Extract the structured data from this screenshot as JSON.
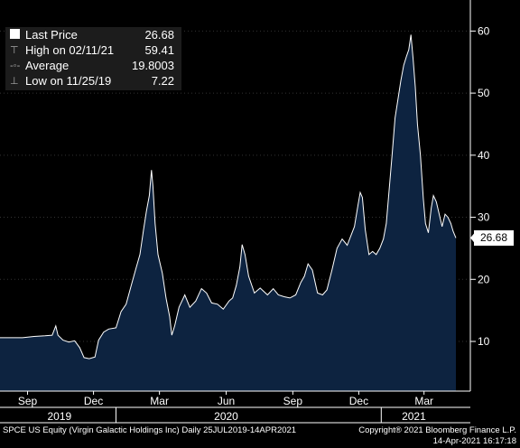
{
  "chart_data": {
    "type": "area",
    "ticker": "SPCE US Equity (Virgin Galactic Holdings Inc)",
    "range_label": "Daily 25JUL2019-14APR2021",
    "ylim": [
      2,
      65
    ],
    "yticks": [
      10,
      20,
      30,
      40,
      50,
      60
    ],
    "month_ticks": [
      {
        "label": "Sep",
        "date": "2019-09-01"
      },
      {
        "label": "Dec",
        "date": "2019-12-01"
      },
      {
        "label": "Mar",
        "date": "2020-03-01"
      },
      {
        "label": "Jun",
        "date": "2020-06-01"
      },
      {
        "label": "Sep",
        "date": "2020-09-01"
      },
      {
        "label": "Dec",
        "date": "2020-12-01"
      },
      {
        "label": "Mar",
        "date": "2021-03-01"
      }
    ],
    "year_labels": [
      {
        "label": "2019",
        "date": "2019-10-15"
      },
      {
        "label": "2020",
        "date": "2020-06-01"
      },
      {
        "label": "2021",
        "date": "2021-02-15"
      }
    ],
    "year_dividers": [
      "2020-01-01",
      "2021-01-01"
    ],
    "x_start": "2019-07-25",
    "x_end": "2021-04-14",
    "series": [
      {
        "values": [
          [
            "2019-07-25",
            10.6
          ],
          [
            "2019-08-10",
            10.6
          ],
          [
            "2019-08-25",
            10.6
          ],
          [
            "2019-09-10",
            10.8
          ],
          [
            "2019-09-25",
            10.9
          ],
          [
            "2019-10-05",
            11.0
          ],
          [
            "2019-10-10",
            12.5
          ],
          [
            "2019-10-13",
            11.0
          ],
          [
            "2019-10-20",
            10.2
          ],
          [
            "2019-10-28",
            9.9
          ],
          [
            "2019-11-05",
            10.1
          ],
          [
            "2019-11-12",
            9.0
          ],
          [
            "2019-11-18",
            7.4
          ],
          [
            "2019-11-25",
            7.22
          ],
          [
            "2019-12-03",
            7.5
          ],
          [
            "2019-12-08",
            10.2
          ],
          [
            "2019-12-15",
            11.5
          ],
          [
            "2019-12-22",
            12.0
          ],
          [
            "2020-01-01",
            12.2
          ],
          [
            "2020-01-08",
            14.8
          ],
          [
            "2020-01-15",
            16.0
          ],
          [
            "2020-01-22",
            19.0
          ],
          [
            "2020-01-28",
            21.5
          ],
          [
            "2020-02-03",
            24.0
          ],
          [
            "2020-02-08",
            28.0
          ],
          [
            "2020-02-12",
            31.0
          ],
          [
            "2020-02-16",
            33.5
          ],
          [
            "2020-02-19",
            37.6
          ],
          [
            "2020-02-21",
            35.0
          ],
          [
            "2020-02-24",
            29.0
          ],
          [
            "2020-02-28",
            24.0
          ],
          [
            "2020-03-05",
            21.0
          ],
          [
            "2020-03-10",
            17.0
          ],
          [
            "2020-03-15",
            14.0
          ],
          [
            "2020-03-18",
            11.0
          ],
          [
            "2020-03-22",
            12.5
          ],
          [
            "2020-03-28",
            15.5
          ],
          [
            "2020-04-05",
            17.5
          ],
          [
            "2020-04-12",
            15.5
          ],
          [
            "2020-04-20",
            16.5
          ],
          [
            "2020-04-28",
            18.5
          ],
          [
            "2020-05-05",
            17.8
          ],
          [
            "2020-05-12",
            16.2
          ],
          [
            "2020-05-20",
            16.0
          ],
          [
            "2020-05-28",
            15.2
          ],
          [
            "2020-06-05",
            16.5
          ],
          [
            "2020-06-10",
            17.0
          ],
          [
            "2020-06-15",
            19.0
          ],
          [
            "2020-06-20",
            22.0
          ],
          [
            "2020-06-23",
            25.6
          ],
          [
            "2020-06-27",
            24.0
          ],
          [
            "2020-07-02",
            20.5
          ],
          [
            "2020-07-10",
            17.8
          ],
          [
            "2020-07-18",
            18.6
          ],
          [
            "2020-07-28",
            17.5
          ],
          [
            "2020-08-05",
            18.5
          ],
          [
            "2020-08-12",
            17.5
          ],
          [
            "2020-08-20",
            17.2
          ],
          [
            "2020-08-28",
            17.0
          ],
          [
            "2020-09-05",
            17.5
          ],
          [
            "2020-09-12",
            19.5
          ],
          [
            "2020-09-17",
            20.5
          ],
          [
            "2020-09-22",
            22.5
          ],
          [
            "2020-09-28",
            21.5
          ],
          [
            "2020-10-05",
            17.8
          ],
          [
            "2020-10-12",
            17.5
          ],
          [
            "2020-10-18",
            18.3
          ],
          [
            "2020-10-25",
            21.5
          ],
          [
            "2020-11-01",
            25.0
          ],
          [
            "2020-11-08",
            26.5
          ],
          [
            "2020-11-15",
            25.5
          ],
          [
            "2020-11-20",
            27.0
          ],
          [
            "2020-11-25",
            28.5
          ],
          [
            "2020-11-30",
            32.0
          ],
          [
            "2020-12-03",
            34.0
          ],
          [
            "2020-12-06",
            33.2
          ],
          [
            "2020-12-10",
            28.0
          ],
          [
            "2020-12-15",
            24.0
          ],
          [
            "2020-12-20",
            24.5
          ],
          [
            "2020-12-25",
            24.0
          ],
          [
            "2020-12-30",
            25.0
          ],
          [
            "2021-01-04",
            26.5
          ],
          [
            "2021-01-08",
            29.0
          ],
          [
            "2021-01-12",
            34.5
          ],
          [
            "2021-01-16",
            40.0
          ],
          [
            "2021-01-20",
            46.0
          ],
          [
            "2021-01-24",
            49.0
          ],
          [
            "2021-01-28",
            52.0
          ],
          [
            "2021-02-01",
            54.5
          ],
          [
            "2021-02-05",
            56.0
          ],
          [
            "2021-02-08",
            57.0
          ],
          [
            "2021-02-11",
            59.41
          ],
          [
            "2021-02-14",
            55.5
          ],
          [
            "2021-02-17",
            51.0
          ],
          [
            "2021-02-20",
            45.0
          ],
          [
            "2021-02-24",
            40.0
          ],
          [
            "2021-02-28",
            33.0
          ],
          [
            "2021-03-03",
            29.0
          ],
          [
            "2021-03-07",
            27.5
          ],
          [
            "2021-03-11",
            31.5
          ],
          [
            "2021-03-14",
            33.5
          ],
          [
            "2021-03-18",
            32.5
          ],
          [
            "2021-03-22",
            30.5
          ],
          [
            "2021-03-26",
            28.5
          ],
          [
            "2021-03-30",
            30.5
          ],
          [
            "2021-04-03",
            30.0
          ],
          [
            "2021-04-07",
            29.0
          ],
          [
            "2021-04-10",
            27.8
          ],
          [
            "2021-04-14",
            26.68
          ]
        ]
      }
    ],
    "last_price_tag": "26.68",
    "colors": {
      "fill": "#0d2340",
      "line": "#ffffff",
      "bg": "#000000",
      "text": "#ffffff"
    }
  },
  "legend": [
    {
      "icon": "last-price-swatch",
      "label": "Last Price",
      "value": "26.68"
    },
    {
      "icon": "high-marker-icon",
      "label": "High on 02/11/21",
      "value": "59.41"
    },
    {
      "icon": "average-marker-icon",
      "label": "Average",
      "value": "19.8003"
    },
    {
      "icon": "low-marker-icon",
      "label": "Low on 11/25/19",
      "value": "7.22"
    }
  ],
  "footer": {
    "left": "SPCE US Equity (Virgin Galactic Holdings Inc)  Daily 25JUL2019-14APR2021",
    "right_line1": "Copyright® 2021 Bloomberg Finance L.P.",
    "right_line2": "14-Apr-2021 16:17:18"
  }
}
